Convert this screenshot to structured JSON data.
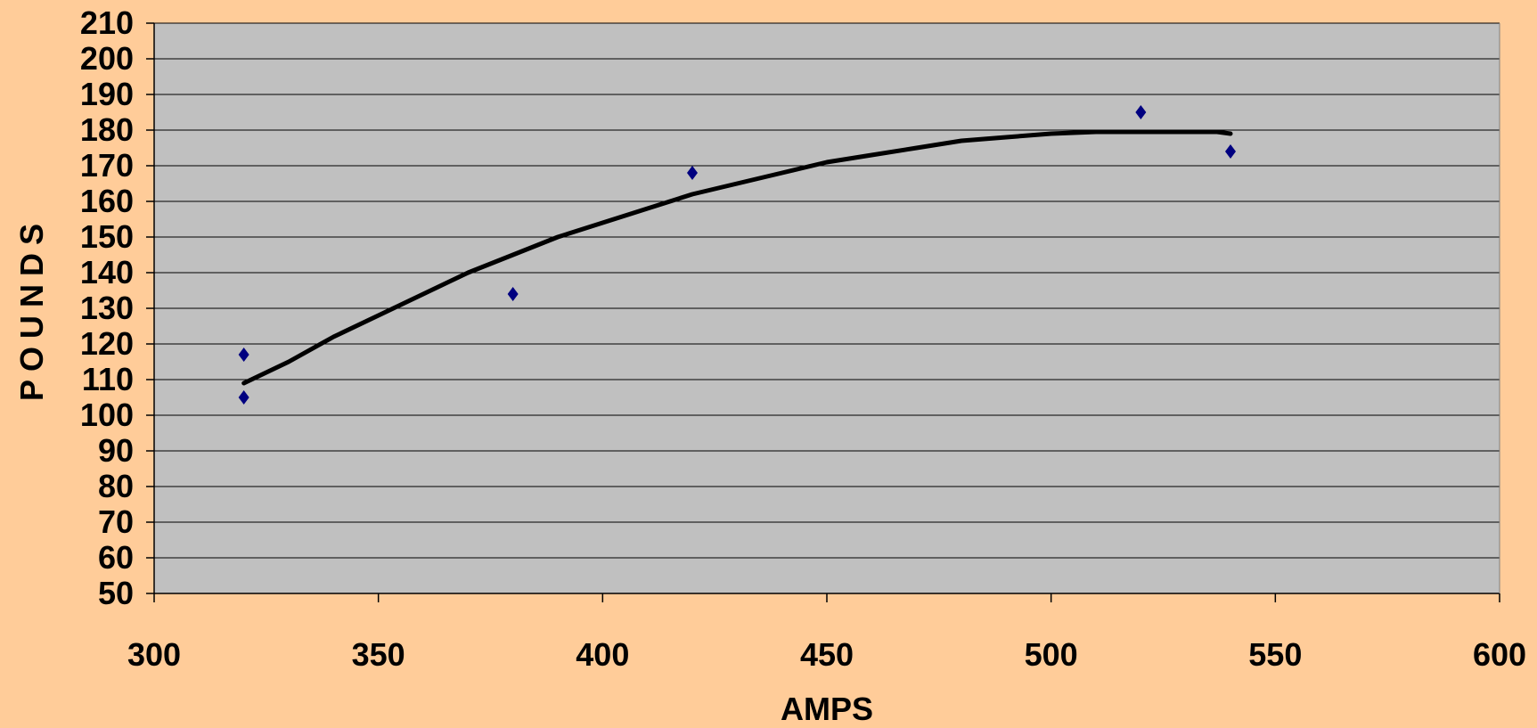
{
  "chart_data": {
    "type": "scatter",
    "title": "",
    "xlabel": "AMPS",
    "ylabel": "POUNDS",
    "xlim": [
      300,
      600
    ],
    "ylim": [
      50,
      210
    ],
    "x_ticks": [
      300,
      350,
      400,
      450,
      500,
      550,
      600
    ],
    "y_ticks": [
      50,
      60,
      70,
      80,
      90,
      100,
      110,
      120,
      130,
      140,
      150,
      160,
      170,
      180,
      190,
      200,
      210
    ],
    "x_tick_labels": [
      "300",
      "350",
      "400",
      "450",
      "500",
      "550",
      "600"
    ],
    "y_tick_labels": [
      "50",
      "60",
      "70",
      "80",
      "90",
      "100",
      "110",
      "120",
      "130",
      "140",
      "150",
      "160",
      "170",
      "180",
      "190",
      "200",
      "210"
    ],
    "grid": true,
    "legend": false,
    "series": [
      {
        "type": "scatter",
        "marker": "diamond",
        "color": "#000080",
        "points": [
          {
            "x": 320,
            "y": 117
          },
          {
            "x": 320,
            "y": 105
          },
          {
            "x": 380,
            "y": 134
          },
          {
            "x": 420,
            "y": 168
          },
          {
            "x": 520,
            "y": 185
          },
          {
            "x": 540,
            "y": 174
          }
        ]
      },
      {
        "type": "line",
        "color": "#000000",
        "points": [
          {
            "x": 320,
            "y": 109
          },
          {
            "x": 330,
            "y": 115
          },
          {
            "x": 340,
            "y": 122
          },
          {
            "x": 350,
            "y": 128
          },
          {
            "x": 360,
            "y": 134
          },
          {
            "x": 370,
            "y": 140
          },
          {
            "x": 380,
            "y": 145
          },
          {
            "x": 390,
            "y": 150
          },
          {
            "x": 400,
            "y": 154
          },
          {
            "x": 410,
            "y": 158
          },
          {
            "x": 420,
            "y": 162
          },
          {
            "x": 430,
            "y": 165
          },
          {
            "x": 440,
            "y": 168
          },
          {
            "x": 450,
            "y": 171
          },
          {
            "x": 460,
            "y": 173
          },
          {
            "x": 470,
            "y": 175
          },
          {
            "x": 480,
            "y": 177
          },
          {
            "x": 490,
            "y": 178
          },
          {
            "x": 500,
            "y": 179
          },
          {
            "x": 510,
            "y": 179.5
          },
          {
            "x": 520,
            "y": 179.5
          },
          {
            "x": 530,
            "y": 179.5
          },
          {
            "x": 537,
            "y": 179.5
          },
          {
            "x": 540,
            "y": 179
          }
        ]
      }
    ]
  },
  "colors": {
    "page_background": "#FFCC99",
    "plot_background": "#C0C0C0",
    "gridline": "#000000",
    "axis": "#000000"
  }
}
